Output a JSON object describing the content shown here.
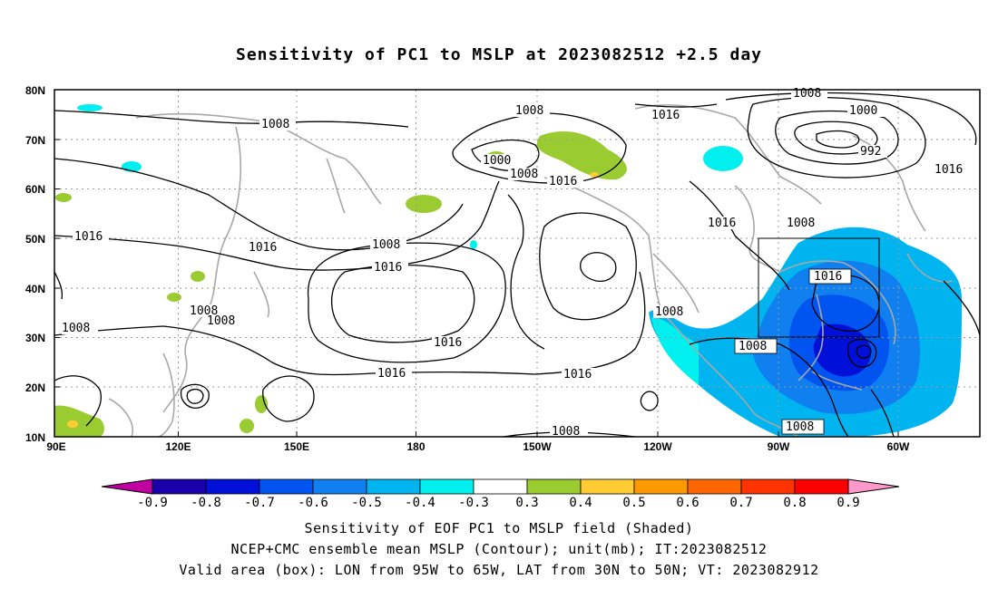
{
  "title": "Sensitivity of PC1 to MSLP at 2023082512 +2.5 day",
  "axes": {
    "x_ticks": [
      "90E",
      "120E",
      "150E",
      "180",
      "150W",
      "120W",
      "90W",
      "60W"
    ],
    "y_ticks": [
      "80N",
      "70N",
      "60N",
      "50N",
      "40N",
      "30N",
      "20N",
      "10N"
    ]
  },
  "colorbar": {
    "labels": [
      "-0.9",
      "-0.8",
      "-0.7",
      "-0.6",
      "-0.5",
      "-0.4",
      "-0.3",
      "0.3",
      "0.4",
      "0.5",
      "0.6",
      "0.7",
      "0.8",
      "0.9"
    ],
    "colors": [
      "#1a00a8",
      "#0010d8",
      "#0055f0",
      "#1080f0",
      "#00b4f0",
      "#00f0f0",
      "#ffffff",
      "#9acc32",
      "#ffcc33",
      "#ff9900",
      "#ff6600",
      "#ff3300",
      "#ff0000"
    ],
    "low_end_color": "#c000a0",
    "high_end_color": "#ff99cc"
  },
  "contour_labels": [
    "1008",
    "1016",
    "1000",
    "992"
  ],
  "footer": {
    "line1": "Sensitivity of EOF PC1 to MSLP field (Shaded)",
    "line2": "NCEP+CMC ensemble mean MSLP (Contour); unit(mb); IT:2023082512",
    "line3": "Valid area (box): LON from 95W to 65W, LAT from 30N to 50N; VT: 2023082912"
  }
}
